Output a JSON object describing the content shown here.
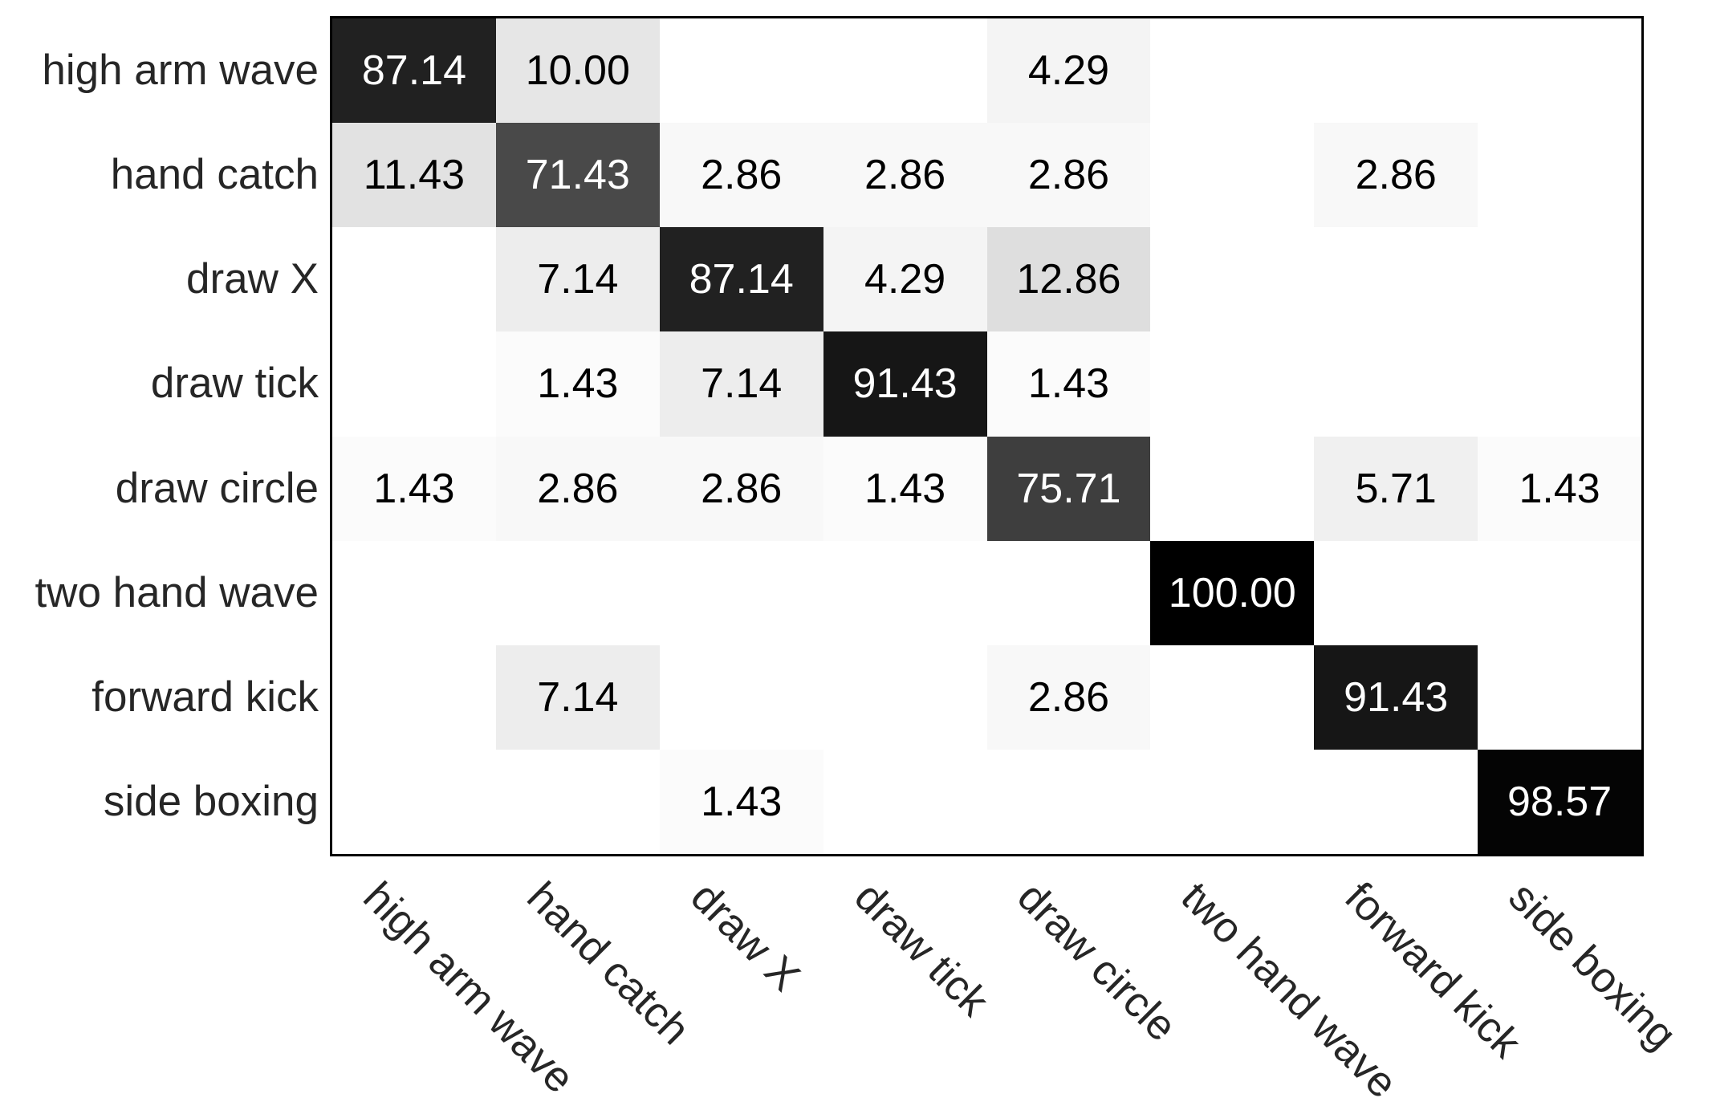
{
  "chart_data": {
    "type": "heatmap",
    "subtype": "confusion-matrix",
    "title": "",
    "xlabel": "",
    "ylabel": "",
    "row_labels": [
      "high arm wave",
      "hand catch",
      "draw X",
      "draw tick",
      "draw circle",
      "two hand wave",
      "forward kick",
      "side boxing"
    ],
    "col_labels": [
      "high arm wave",
      "hand catch",
      "draw X",
      "draw tick",
      "draw circle",
      "two hand wave",
      "forward kick",
      "side boxing"
    ],
    "matrix": [
      [
        87.14,
        10.0,
        null,
        null,
        4.29,
        null,
        null,
        null
      ],
      [
        11.43,
        71.43,
        2.86,
        2.86,
        2.86,
        null,
        2.86,
        null
      ],
      [
        null,
        7.14,
        87.14,
        4.29,
        12.86,
        null,
        null,
        null
      ],
      [
        null,
        1.43,
        7.14,
        91.43,
        1.43,
        null,
        null,
        null
      ],
      [
        1.43,
        2.86,
        2.86,
        1.43,
        75.71,
        null,
        5.71,
        1.43
      ],
      [
        null,
        null,
        null,
        null,
        null,
        100.0,
        null,
        null
      ],
      [
        null,
        7.14,
        null,
        null,
        2.86,
        null,
        91.43,
        null
      ],
      [
        null,
        null,
        1.43,
        null,
        null,
        null,
        null,
        98.57
      ]
    ],
    "value_decimals": 2,
    "scale": {
      "min": 0,
      "max": 100,
      "min_color": "#ffffff",
      "max_color": "#000000"
    },
    "cell_text_dark": "#000000",
    "cell_text_light": "#ffffff",
    "text_light_threshold": 50,
    "frame_color": "#000000",
    "background_color": "#ffffff",
    "x_tick_rotation_deg": 45,
    "grid": "off",
    "legend": "none"
  }
}
